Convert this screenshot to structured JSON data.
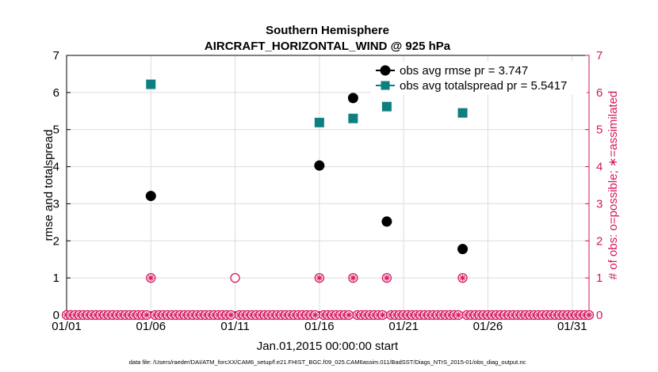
{
  "chart_data": {
    "type": "scatter",
    "title": "Southern Hemisphere",
    "subtitle": "AIRCRAFT_HORIZONTAL_WIND @ 925 hPa",
    "xlabel": "Jan.01,2015 00:00:00 start",
    "ylabel": "rmse and totalspread",
    "y2label": "# of obs: o=possible; ∗=assimilated",
    "footnote": "data file: /Users/raeder/DAI/ATM_forcXX/CAM6_setup/f.e21.FHIST_BGC.f09_025.CAM6assim.011/BadSST/Diags_NTrS_2015-01/obs_diag_output.nc",
    "x_range": [
      1,
      32
    ],
    "ylim": [
      0,
      7
    ],
    "y2lim": [
      0,
      7
    ],
    "x_ticks": [
      1,
      6,
      11,
      16,
      21,
      26,
      31
    ],
    "x_tick_labels": [
      "01/01",
      "01/06",
      "01/11",
      "01/16",
      "01/21",
      "01/26",
      "01/31"
    ],
    "y_ticks": [
      0,
      1,
      2,
      3,
      4,
      5,
      6,
      7
    ],
    "grid": true,
    "legend_position": "top-right",
    "colors": {
      "rmse": "#000000",
      "spread": "#0e7f7f",
      "obs": "#d6165e",
      "grid": "#dcdcdc"
    },
    "series": [
      {
        "name": "obs avg rmse pr = 3.747",
        "marker": "circle",
        "points": [
          [
            6,
            3.21
          ],
          [
            16,
            4.03
          ],
          [
            18,
            5.85
          ],
          [
            20,
            2.52
          ],
          [
            24.5,
            1.78
          ]
        ]
      },
      {
        "name": "obs avg totalspread pr = 5.5417",
        "marker": "square",
        "points": [
          [
            6,
            6.22
          ],
          [
            16,
            5.19
          ],
          [
            18,
            5.3
          ],
          [
            20,
            5.62
          ],
          [
            24.5,
            5.45
          ]
        ]
      }
    ],
    "obs_possible_x": [
      6,
      11,
      16,
      18,
      20,
      24.5
    ],
    "obs_possible_y": [
      1,
      1,
      1,
      1,
      1,
      1
    ],
    "obs_assimilated_x": [
      6,
      16,
      18,
      20,
      24.5
    ],
    "obs_assimilated_y": [
      1,
      1,
      1,
      1,
      1
    ],
    "zero_obs_step": 0.25
  }
}
